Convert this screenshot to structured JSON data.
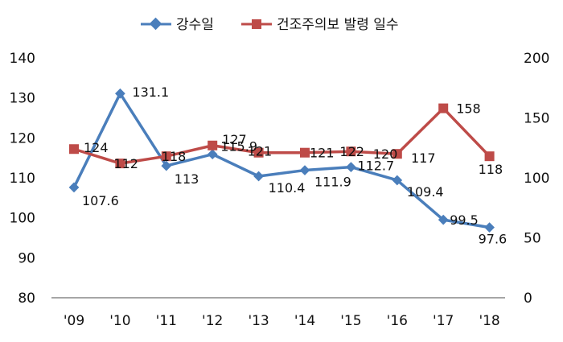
{
  "chart_data": {
    "type": "line",
    "title": "",
    "x": [
      "'09",
      "'10",
      "'11",
      "'12",
      "'13",
      "'14",
      "'15",
      "'16",
      "'17",
      "'18"
    ],
    "grid": false,
    "legend_position": "top-center",
    "series": [
      {
        "name": "강수일",
        "axis": "left",
        "color": "#4a7ebb",
        "marker": "diamond",
        "values": [
          107.6,
          131.1,
          113,
          115.9,
          110.4,
          111.9,
          112.7,
          109.4,
          99.5,
          97.6
        ],
        "labels": [
          "107.6",
          "131.1",
          "113",
          "115.9",
          "110.4",
          "111.9",
          "112.7",
          "109.4",
          "99.5",
          "97.6"
        ]
      },
      {
        "name": "건조주의보 발령 일수",
        "axis": "right",
        "color": "#be4b48",
        "marker": "square",
        "values": [
          124,
          112,
          118,
          127,
          121,
          121,
          122,
          120,
          158,
          118
        ],
        "labels": [
          "124",
          "112",
          "118",
          "127",
          "121",
          "121",
          "122",
          "120",
          "158",
          "118"
        ]
      }
    ],
    "left_axis": {
      "min": 80,
      "max": 140,
      "ticks": [
        80,
        90,
        100,
        110,
        120,
        130,
        140
      ]
    },
    "right_axis": {
      "min": 0,
      "max": 200,
      "ticks": [
        0,
        50,
        100,
        150,
        200
      ]
    },
    "annotations": [
      {
        "text": "117"
      }
    ]
  }
}
